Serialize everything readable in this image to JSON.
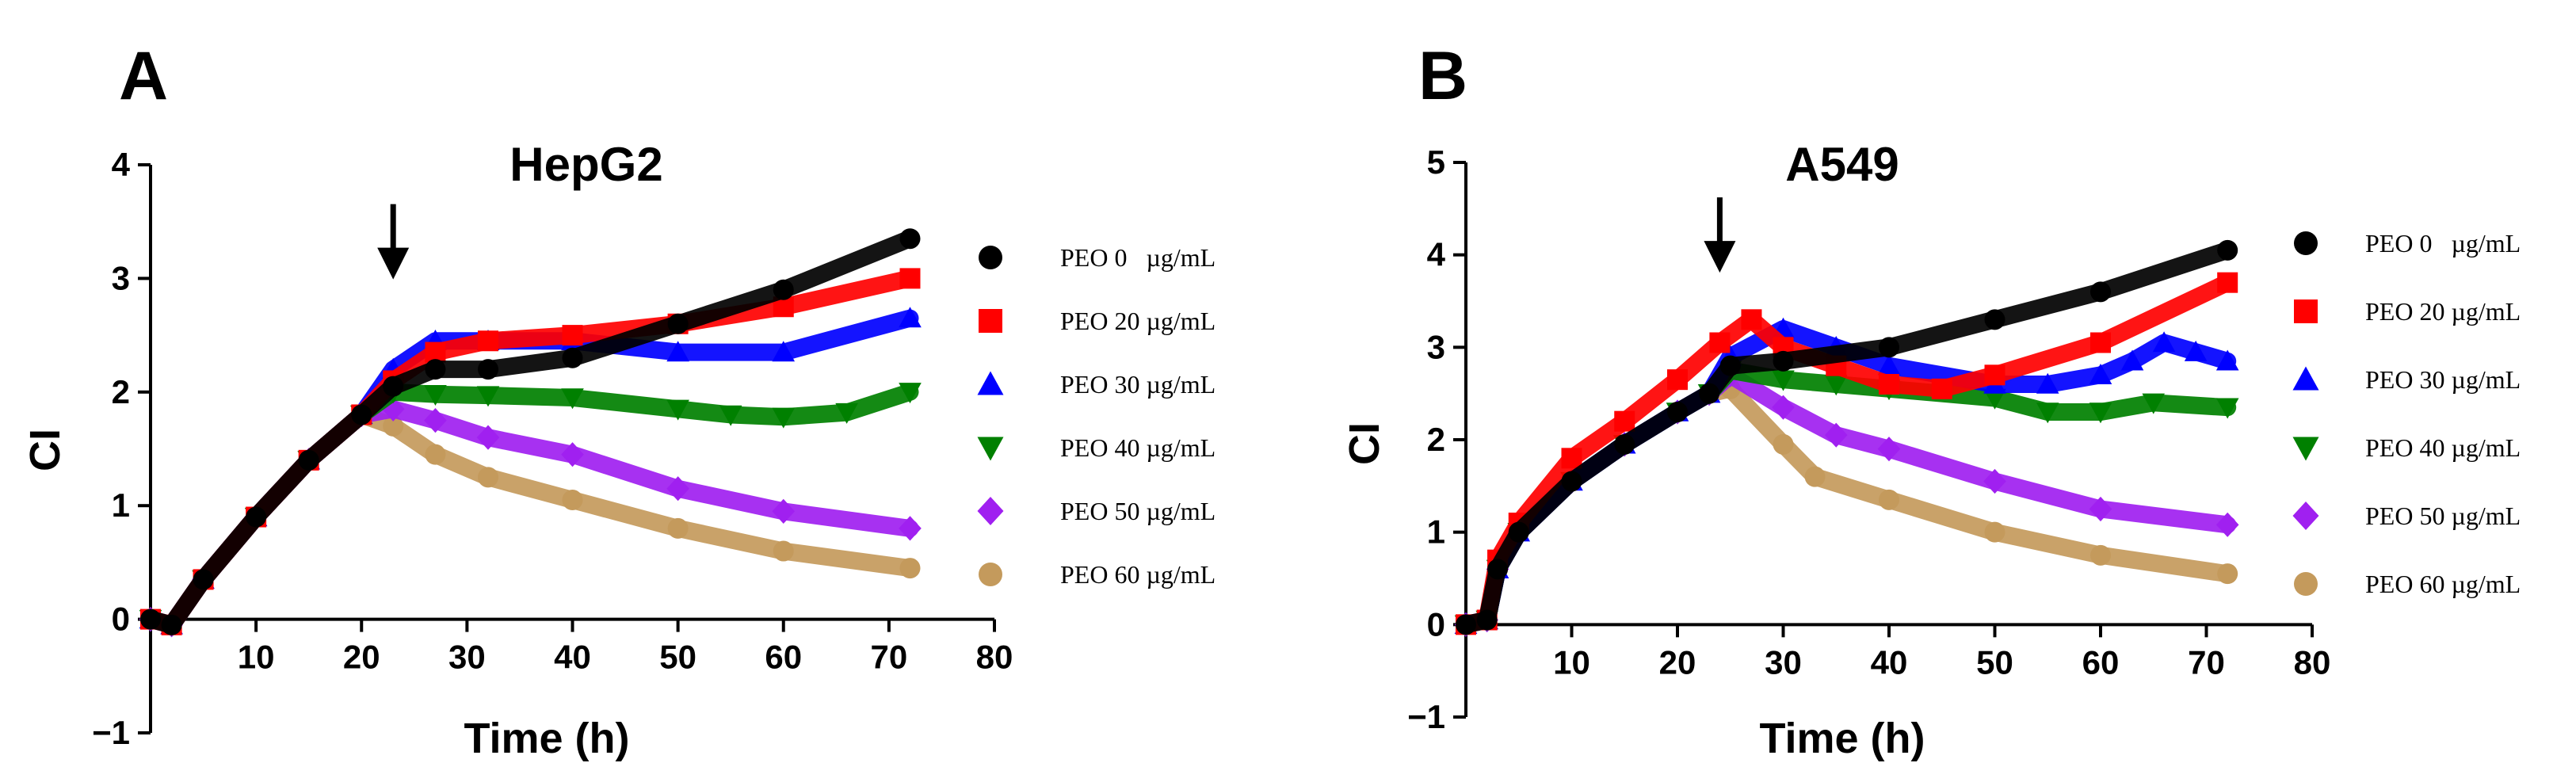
{
  "chart_data": [
    {
      "panel_label": "A",
      "type": "line",
      "title": "HepG2",
      "xlabel": "Time (h)",
      "ylabel": "CI",
      "xlim": [
        0,
        80
      ],
      "ylim": [
        -1,
        4
      ],
      "xticks": [
        10,
        20,
        30,
        40,
        50,
        60,
        70,
        80
      ],
      "yticks": [
        -1,
        0,
        1,
        2,
        3,
        4
      ],
      "ytick_labels": [
        "−1",
        "0",
        "1",
        "2",
        "3",
        "4"
      ],
      "treatment_time": 23,
      "series": [
        {
          "name": "PEO 0   µg/mL",
          "color": "#000000",
          "marker": "circle",
          "x": [
            0,
            2,
            5,
            10,
            15,
            20,
            23,
            27,
            32,
            40,
            50,
            60,
            72
          ],
          "y": [
            0,
            -0.05,
            0.35,
            0.9,
            1.4,
            1.8,
            2.05,
            2.2,
            2.2,
            2.3,
            2.6,
            2.9,
            3.35
          ]
        },
        {
          "name": "PEO 20 µg/mL",
          "color": "#ff0000",
          "marker": "square",
          "x": [
            0,
            2,
            5,
            10,
            15,
            20,
            23,
            27,
            32,
            40,
            50,
            60,
            72
          ],
          "y": [
            0,
            -0.05,
            0.35,
            0.9,
            1.4,
            1.8,
            2.1,
            2.35,
            2.45,
            2.5,
            2.6,
            2.75,
            3.0
          ]
        },
        {
          "name": "PEO 30 µg/mL",
          "color": "#0000ff",
          "marker": "triangle",
          "x": [
            0,
            2,
            5,
            10,
            15,
            20,
            23,
            27,
            32,
            40,
            50,
            60,
            72
          ],
          "y": [
            0,
            -0.05,
            0.35,
            0.9,
            1.4,
            1.8,
            2.2,
            2.45,
            2.45,
            2.45,
            2.35,
            2.35,
            2.65
          ]
        },
        {
          "name": "PEO 40 µg/mL",
          "color": "#008000",
          "marker": "triangle-down",
          "x": [
            0,
            2,
            5,
            10,
            15,
            20,
            23,
            27,
            32,
            40,
            50,
            55,
            60,
            66,
            72
          ],
          "y": [
            0,
            -0.05,
            0.35,
            0.9,
            1.4,
            1.8,
            2.0,
            1.98,
            1.97,
            1.95,
            1.85,
            1.8,
            1.78,
            1.82,
            2.0
          ]
        },
        {
          "name": "PEO 50 µg/mL",
          "color": "#a020f0",
          "marker": "diamond",
          "x": [
            0,
            2,
            5,
            10,
            15,
            20,
            23,
            27,
            32,
            40,
            50,
            60,
            72
          ],
          "y": [
            0,
            -0.05,
            0.35,
            0.9,
            1.4,
            1.8,
            1.85,
            1.75,
            1.6,
            1.45,
            1.15,
            0.95,
            0.8
          ]
        },
        {
          "name": "PEO 60 µg/mL",
          "color": "#c49a5c",
          "marker": "circle",
          "x": [
            0,
            2,
            5,
            10,
            15,
            20,
            23,
            27,
            32,
            40,
            50,
            60,
            72
          ],
          "y": [
            0,
            -0.05,
            0.35,
            0.9,
            1.4,
            1.8,
            1.7,
            1.45,
            1.25,
            1.05,
            0.8,
            0.6,
            0.45
          ]
        }
      ]
    },
    {
      "panel_label": "B",
      "type": "line",
      "title": "A549",
      "xlabel": "Time (h)",
      "ylabel": "CI",
      "xlim": [
        0,
        80
      ],
      "ylim": [
        -1,
        5
      ],
      "xticks": [
        10,
        20,
        30,
        40,
        50,
        60,
        70,
        80
      ],
      "yticks": [
        -1,
        0,
        1,
        2,
        3,
        4,
        5
      ],
      "ytick_labels": [
        "−1",
        "0",
        "1",
        "2",
        "3",
        "4",
        "5"
      ],
      "treatment_time": 24,
      "series": [
        {
          "name": "PEO 0   µg/mL",
          "color": "#000000",
          "marker": "circle",
          "x": [
            0,
            2,
            3,
            5,
            10,
            15,
            20,
            23,
            25,
            30,
            40,
            50,
            60,
            72
          ],
          "y": [
            0,
            0.05,
            0.6,
            1.0,
            1.55,
            1.95,
            2.3,
            2.5,
            2.8,
            2.85,
            3.0,
            3.3,
            3.6,
            4.05
          ]
        },
        {
          "name": "PEO 20 µg/mL",
          "color": "#ff0000",
          "marker": "square",
          "x": [
            0,
            2,
            3,
            5,
            10,
            15,
            20,
            24,
            27,
            30,
            35,
            40,
            45,
            50,
            60,
            72
          ],
          "y": [
            0,
            0.05,
            0.7,
            1.1,
            1.8,
            2.2,
            2.65,
            3.05,
            3.3,
            3.0,
            2.8,
            2.6,
            2.55,
            2.7,
            3.05,
            3.7
          ]
        },
        {
          "name": "PEO 30 µg/mL",
          "color": "#0000ff",
          "marker": "triangle",
          "x": [
            0,
            2,
            3,
            5,
            10,
            15,
            20,
            23,
            25,
            30,
            35,
            40,
            50,
            55,
            60,
            63,
            66,
            69,
            72
          ],
          "y": [
            0,
            0.05,
            0.6,
            1.0,
            1.55,
            1.95,
            2.3,
            2.5,
            2.9,
            3.2,
            3.0,
            2.8,
            2.6,
            2.6,
            2.7,
            2.85,
            3.05,
            2.95,
            2.85
          ]
        },
        {
          "name": "PEO 40 µg/mL",
          "color": "#008000",
          "marker": "triangle-down",
          "x": [
            0,
            2,
            3,
            5,
            10,
            15,
            20,
            23,
            25,
            30,
            35,
            40,
            50,
            55,
            60,
            65,
            72
          ],
          "y": [
            0,
            0.05,
            0.6,
            1.0,
            1.55,
            1.95,
            2.3,
            2.5,
            2.75,
            2.65,
            2.6,
            2.55,
            2.45,
            2.3,
            2.3,
            2.4,
            2.35
          ]
        },
        {
          "name": "PEO 50 µg/mL",
          "color": "#a020f0",
          "marker": "diamond",
          "x": [
            0,
            2,
            3,
            5,
            10,
            15,
            20,
            23,
            25,
            30,
            35,
            40,
            50,
            60,
            72
          ],
          "y": [
            0,
            0.05,
            0.6,
            1.0,
            1.55,
            1.95,
            2.3,
            2.5,
            2.7,
            2.35,
            2.05,
            1.9,
            1.55,
            1.25,
            1.08
          ]
        },
        {
          "name": "PEO 60 µg/mL",
          "color": "#c49a5c",
          "marker": "circle",
          "x": [
            0,
            2,
            3,
            5,
            10,
            15,
            20,
            23,
            25,
            30,
            33,
            40,
            50,
            60,
            72
          ],
          "y": [
            0,
            0.05,
            0.6,
            1.0,
            1.55,
            1.95,
            2.3,
            2.5,
            2.55,
            1.95,
            1.6,
            1.35,
            1.0,
            0.75,
            0.55
          ]
        }
      ]
    }
  ]
}
